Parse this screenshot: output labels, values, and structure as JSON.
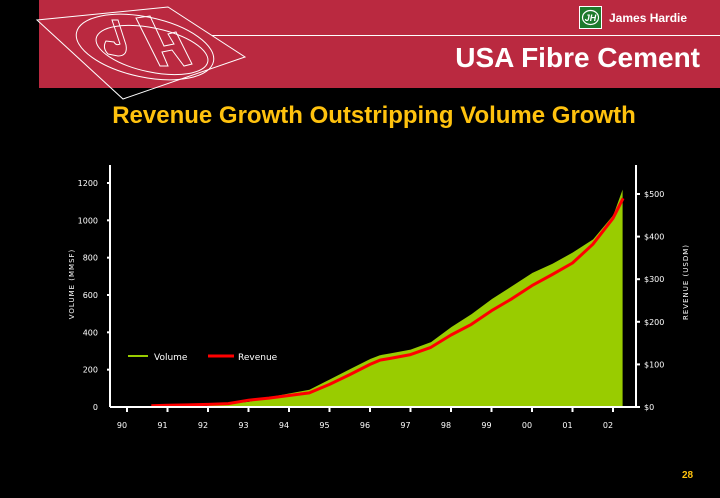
{
  "header": {
    "brand_name": "James Hardie",
    "brand_logo_letters": "JH",
    "section_title": "USA Fibre Cement"
  },
  "slide": {
    "title": "Revenue Growth Outstripping Volume Growth",
    "page_number": "28"
  },
  "colors": {
    "banner": "#BA2940",
    "title": "#FFC20E",
    "volume": "#99CC00",
    "revenue": "#FF0000",
    "brand_box": "#1E7A2C"
  },
  "chart_data": {
    "type": "area",
    "title": "Revenue Growth Outstripping Volume Growth",
    "xlabel": "",
    "ylabel": "VOLUME (MMSF)",
    "y2label": "REVENUE (USDM)",
    "x_ticks": [
      "90",
      "91",
      "92",
      "93",
      "94",
      "95",
      "96",
      "97",
      "98",
      "99",
      "00",
      "01",
      "02"
    ],
    "x_range": [
      1990,
      2002.25
    ],
    "ylim": [
      0,
      1200
    ],
    "y_ticks": [
      0,
      200,
      400,
      600,
      800,
      1000,
      1200
    ],
    "y2lim": [
      0,
      500
    ],
    "y2_ticks": [
      {
        "value": 0,
        "label": "$0"
      },
      {
        "value": 100,
        "label": "$100"
      },
      {
        "value": 200,
        "label": "$200"
      },
      {
        "value": 300,
        "label": "$300"
      },
      {
        "value": 400,
        "label": "$400"
      },
      {
        "value": 500,
        "label": "$500"
      }
    ],
    "legend": {
      "position": "bottom-left",
      "entries": [
        "Volume",
        "Revenue"
      ]
    },
    "grid": false,
    "series": [
      {
        "name": "Volume",
        "axis": "left",
        "type": "area",
        "x": [
          1991.7,
          1992.0,
          1992.5,
          1993.0,
          1993.5,
          1994.0,
          1994.5,
          1995.0,
          1995.5,
          1996.0,
          1996.25,
          1996.5,
          1997.0,
          1997.5,
          1998.0,
          1998.5,
          1999.0,
          1999.5,
          2000.0,
          2000.5,
          2001.0,
          2001.5,
          2002.0,
          2002.25
        ],
        "values": [
          0,
          10,
          20,
          30,
          55,
          75,
          95,
          150,
          205,
          260,
          280,
          290,
          310,
          350,
          430,
          500,
          580,
          650,
          720,
          770,
          830,
          900,
          1030,
          1180
        ]
      },
      {
        "name": "Revenue",
        "axis": "right",
        "type": "line",
        "x": [
          1990.6,
          1991.0,
          1991.5,
          1992.0,
          1992.5,
          1993.0,
          1993.5,
          1994.0,
          1994.5,
          1995.0,
          1995.5,
          1996.0,
          1996.25,
          1996.5,
          1997.0,
          1997.5,
          1998.0,
          1998.5,
          1999.0,
          1999.5,
          2000.0,
          2000.5,
          2001.0,
          2001.5,
          2002.0,
          2002.25
        ],
        "values": [
          3,
          4,
          5,
          6,
          8,
          16,
          21,
          27,
          33,
          53,
          76,
          100,
          110,
          114,
          123,
          140,
          169,
          194,
          226,
          254,
          285,
          311,
          338,
          382,
          443,
          490
        ]
      }
    ]
  }
}
